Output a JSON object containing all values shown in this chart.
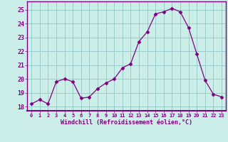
{
  "x": [
    0,
    1,
    2,
    3,
    4,
    5,
    6,
    7,
    8,
    9,
    10,
    11,
    12,
    13,
    14,
    15,
    16,
    17,
    18,
    19,
    20,
    21,
    22,
    23
  ],
  "y": [
    18.2,
    18.5,
    18.2,
    19.8,
    20.0,
    19.8,
    18.6,
    18.7,
    19.3,
    19.7,
    20.0,
    20.8,
    21.1,
    22.7,
    23.4,
    24.7,
    24.85,
    25.1,
    24.85,
    23.7,
    21.8,
    19.9,
    18.9,
    18.7
  ],
  "line_color": "#800080",
  "marker": "D",
  "marker_size": 2.5,
  "bg_color": "#cceee8",
  "grid_color": "#99cccc",
  "xlabel": "Windchill (Refroidissement éolien,°C)",
  "xlabel_color": "#800080",
  "tick_color": "#800080",
  "ylabel_ticks": [
    18,
    19,
    20,
    21,
    22,
    23,
    24,
    25
  ],
  "xlim": [
    -0.5,
    23.5
  ],
  "ylim": [
    17.7,
    25.6
  ],
  "xticks": [
    0,
    1,
    2,
    3,
    4,
    5,
    6,
    7,
    8,
    9,
    10,
    11,
    12,
    13,
    14,
    15,
    16,
    17,
    18,
    19,
    20,
    21,
    22,
    23
  ],
  "spine_color": "#800080"
}
